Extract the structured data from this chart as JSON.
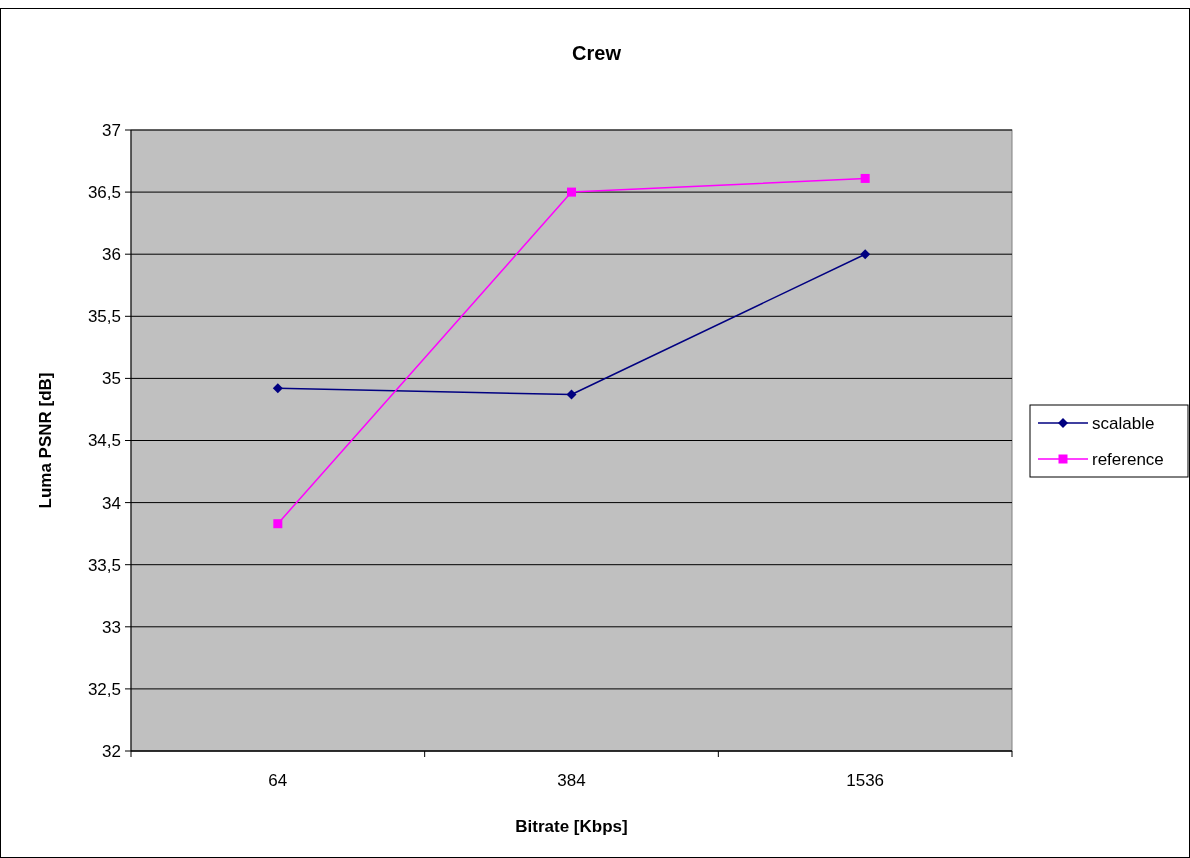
{
  "chart_data": {
    "type": "line",
    "title": "Crew",
    "xlabel": "Bitrate [Kbps]",
    "ylabel": "Luma PSNR [dB]",
    "categories": [
      "64",
      "384",
      "1536"
    ],
    "series": [
      {
        "name": "scalable",
        "color": "#000080",
        "marker": "diamond",
        "values": [
          34.92,
          34.87,
          36.0
        ]
      },
      {
        "name": "reference",
        "color": "#ff00ff",
        "marker": "square",
        "values": [
          33.83,
          36.5,
          36.61
        ]
      }
    ],
    "ylim": [
      32,
      37
    ],
    "yticks": [
      32,
      {
        "value": 32.5,
        "label": "32,5"
      },
      33,
      {
        "value": 33.5,
        "label": "33,5"
      },
      34,
      {
        "value": 34.5,
        "label": "34,5"
      },
      35,
      {
        "value": 35.5,
        "label": "35,5"
      },
      36,
      {
        "value": 36.5,
        "label": "36,5"
      },
      37
    ],
    "grid": "y",
    "legend": "right"
  }
}
